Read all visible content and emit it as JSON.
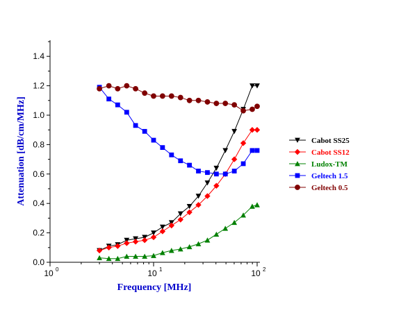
{
  "chart_data": {
    "type": "line",
    "title": "",
    "xlabel": "Frequency [MHz]",
    "ylabel": "Attenuation [dB/cm/MHz]",
    "xscale": "log",
    "xlim": [
      1,
      100
    ],
    "ylim": [
      0,
      1.5
    ],
    "x_ticks": [
      {
        "value": 1,
        "base": "10",
        "exp": "0"
      },
      {
        "value": 10,
        "base": "10",
        "exp": "1"
      },
      {
        "value": 100,
        "base": "10",
        "exp": "2"
      }
    ],
    "y_ticks": [
      "0.0",
      "0.2",
      "0.4",
      "0.6",
      "0.8",
      "1.0",
      "1.2",
      "1.4"
    ],
    "axis_color": "#0000cc",
    "grid": false,
    "legend_position": "right",
    "series": [
      {
        "name": "Cabot SS25",
        "color": "#000000",
        "marker": "triangle-down",
        "x": [
          3,
          3.7,
          4.5,
          5.5,
          6.7,
          8.2,
          10,
          12.2,
          14.9,
          18.2,
          22.2,
          27.1,
          33.1,
          40.4,
          49.3,
          60.2,
          73.5,
          89.7,
          100
        ],
        "y": [
          0.08,
          0.11,
          0.12,
          0.15,
          0.16,
          0.17,
          0.2,
          0.24,
          0.27,
          0.33,
          0.38,
          0.45,
          0.54,
          0.64,
          0.76,
          0.89,
          1.04,
          1.2,
          1.2
        ]
      },
      {
        "name": "Cabot SS12",
        "color": "#ff0000",
        "marker": "diamond",
        "x": [
          3,
          3.7,
          4.5,
          5.5,
          6.7,
          8.2,
          10,
          12.2,
          14.9,
          18.2,
          22.2,
          27.1,
          33.1,
          40.4,
          49.3,
          60.2,
          73.5,
          89.7,
          100
        ],
        "y": [
          0.08,
          0.1,
          0.11,
          0.13,
          0.14,
          0.15,
          0.17,
          0.21,
          0.25,
          0.29,
          0.34,
          0.39,
          0.45,
          0.52,
          0.6,
          0.7,
          0.81,
          0.9,
          0.9
        ]
      },
      {
        "name": "Ludox-TM",
        "color": "#008000",
        "marker": "triangle-up",
        "x": [
          3,
          3.7,
          4.5,
          5.5,
          6.7,
          8.2,
          10,
          12.2,
          14.9,
          18.2,
          22.2,
          27.1,
          33.1,
          40.4,
          49.3,
          60.2,
          73.5,
          89.7,
          100
        ],
        "y": [
          0.03,
          0.025,
          0.025,
          0.04,
          0.04,
          0.04,
          0.045,
          0.065,
          0.08,
          0.09,
          0.105,
          0.125,
          0.15,
          0.19,
          0.23,
          0.27,
          0.32,
          0.38,
          0.39
        ]
      },
      {
        "name": "Geltech 1.5",
        "color": "#0000ff",
        "marker": "square",
        "x": [
          3,
          3.7,
          4.5,
          5.5,
          6.7,
          8.2,
          10,
          12.2,
          14.9,
          18.2,
          22.2,
          27.1,
          33.1,
          40.4,
          49.3,
          60.2,
          73.5,
          89.7,
          100
        ],
        "y": [
          1.19,
          1.11,
          1.07,
          1.02,
          0.93,
          0.89,
          0.83,
          0.78,
          0.73,
          0.69,
          0.66,
          0.62,
          0.61,
          0.6,
          0.6,
          0.62,
          0.67,
          0.76,
          0.76
        ]
      },
      {
        "name": "Geltech 0.5",
        "color": "#800000",
        "marker": "circle",
        "x": [
          3,
          3.7,
          4.5,
          5.5,
          6.7,
          8.2,
          10,
          12.2,
          14.9,
          18.2,
          22.2,
          27.1,
          33.1,
          40.4,
          49.3,
          60.2,
          73.5,
          89.7,
          100
        ],
        "y": [
          1.18,
          1.2,
          1.18,
          1.2,
          1.18,
          1.15,
          1.13,
          1.13,
          1.13,
          1.12,
          1.1,
          1.1,
          1.09,
          1.08,
          1.08,
          1.07,
          1.03,
          1.04,
          1.06
        ]
      }
    ]
  }
}
